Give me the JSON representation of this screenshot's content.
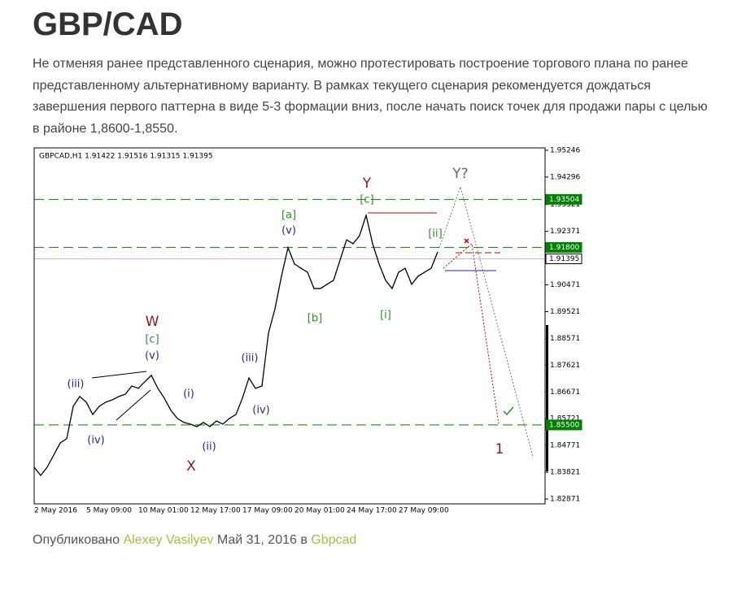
{
  "header": {
    "title": "GBP/CAD"
  },
  "paragraph": "Не отменяя ранее представленного сценария, можно протестировать построение торгового плана по ранее представленному альтернативному варианту. В рамках текущего сценария рекомендуется дождаться завершения первого паттерна в виде 5-3 формации вниз, после начать поиск точек для продажи пары с целью в районе 1,8600-1,8550.",
  "chart_data": {
    "type": "line",
    "title": "GBPCAD,H1  1.91422 1.91516 1.91315 1.91395",
    "color": "#000000",
    "categories": [
      "2 May 2016",
      null,
      null,
      null,
      null,
      null,
      null,
      null,
      "5 May 09:00",
      null,
      null,
      null,
      null,
      null,
      null,
      null,
      "10 May 01:00",
      null,
      null,
      null,
      null,
      null,
      null,
      null,
      "12 May 17:00",
      null,
      null,
      null,
      null,
      null,
      null,
      null,
      "17 May 09:00",
      null,
      null,
      null,
      null,
      null,
      null,
      null,
      "20 May 01:00",
      null,
      null,
      null,
      null,
      null,
      null,
      null,
      "24 May 17:00",
      null,
      null,
      null,
      null,
      null,
      null,
      null,
      "27 May 09:00",
      null,
      null,
      null,
      null,
      null,
      null
    ],
    "values": [
      1.84,
      1.8371,
      1.84,
      1.8443,
      1.8486,
      1.8501,
      1.8616,
      1.8651,
      1.8631,
      1.8587,
      1.8616,
      1.8631,
      1.8639,
      1.8651,
      1.8659,
      1.8688,
      1.868,
      1.8703,
      1.8726,
      1.868,
      1.8645,
      1.8602,
      1.8573,
      1.8559,
      1.8553,
      1.8544,
      1.8559,
      1.8544,
      1.8564,
      1.8553,
      1.8573,
      1.8587,
      1.8645,
      1.8717,
      1.868,
      1.8688,
      1.8876,
      1.8962,
      1.9078,
      1.9179,
      1.9121,
      1.9106,
      1.9092,
      1.9034,
      1.9034,
      1.9049,
      1.9063,
      1.9135,
      1.9207,
      1.9193,
      1.9222,
      1.9294,
      1.9193,
      1.9121,
      1.9063,
      1.9034,
      1.9092,
      1.9106,
      1.9049,
      1.9078,
      1.9092,
      1.9106,
      1.9164
    ],
    "ylim": [
      1.827,
      1.9533
    ],
    "yticks": [
      1.95246,
      1.94296,
      1.93321,
      1.92371,
      1.90471,
      1.89521,
      1.88571,
      1.87621,
      1.86671,
      1.85721,
      1.84771,
      1.83821,
      1.82871
    ],
    "levels": [
      {
        "value": 1.93504,
        "label": "1.93504",
        "color": "#008000"
      },
      {
        "value": 1.918,
        "label": "1.91800",
        "color": "#008000"
      },
      {
        "value": 1.855,
        "label": "1.85500",
        "color": "#008000"
      },
      {
        "value": 1.91395,
        "label": "1.91395",
        "color": "#999999"
      }
    ],
    "annotations": [
      {
        "text": "W",
        "color": "#8b1a1a"
      },
      {
        "text": "[c]",
        "color": "#2e8b2e"
      },
      {
        "text": "(v)",
        "color": "#1f2a9a"
      },
      {
        "text": "(iii)",
        "color": "#1f2a9a"
      },
      {
        "text": "(iv)",
        "color": "#1f2a9a"
      },
      {
        "text": "(i)",
        "color": "#1f2a9a"
      },
      {
        "text": "(ii)",
        "color": "#1f2a9a"
      },
      {
        "text": "X",
        "color": "#8b1a1a"
      },
      {
        "text": "(iii)",
        "color": "#1f2a9a"
      },
      {
        "text": "(iv)",
        "color": "#1f2a9a"
      },
      {
        "text": "[a]",
        "color": "#2e8b2e"
      },
      {
        "text": "(v)",
        "color": "#1f2a9a"
      },
      {
        "text": "[b]",
        "color": "#2e8b2e"
      },
      {
        "text": "Y",
        "color": "#8b1a1a"
      },
      {
        "text": "[c]",
        "color": "#2e8b2e"
      },
      {
        "text": "[i]",
        "color": "#2e8b2e"
      },
      {
        "text": "[ii]",
        "color": "#2e8b2e"
      },
      {
        "text": "Y?",
        "color": "#666666"
      },
      {
        "text": "1",
        "color": "#8b1a1a"
      }
    ]
  },
  "footer": {
    "prefix": "Опубликовано",
    "author": "Alexey Vasilyev",
    "date": "Май 31, 2016 в",
    "category": "Gbpcad"
  }
}
